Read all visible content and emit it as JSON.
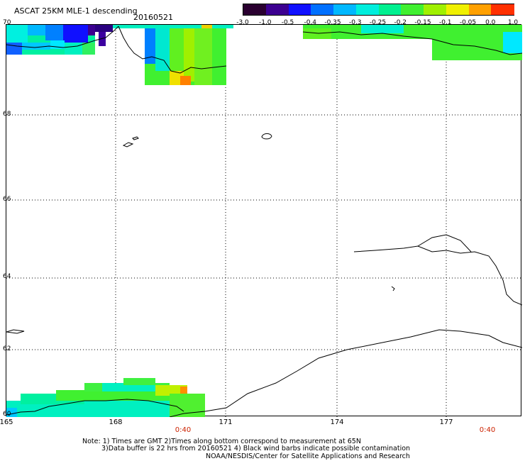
{
  "header": {
    "title": "ASCAT 25KM MLE-1 descending",
    "date": "20160521"
  },
  "colorbar": {
    "labels": [
      "-3.0",
      "-1.0",
      "-0.5",
      "-0.4",
      "-0.35",
      "-0.3",
      "-0.25",
      "-0.2",
      "-0.15",
      "-0.1",
      "-0.05",
      "0.0",
      "1.0"
    ],
    "colors": [
      "#2a0030",
      "#3c0090",
      "#1010ff",
      "#0070ff",
      "#00b8ff",
      "#00eedd",
      "#00f090",
      "#40f030",
      "#a0f000",
      "#f0f000",
      "#ffa000",
      "#ff3000"
    ]
  },
  "map": {
    "lat_labels": [
      "70",
      "68",
      "66",
      "64",
      "62",
      "60"
    ],
    "lon_labels": [
      "165",
      "168",
      "171",
      "174",
      "177"
    ],
    "time_labels": [
      "0:40",
      "0:40"
    ]
  },
  "notes": {
    "line1": "Note: 1) Times are GMT 2)Times along bottom correspond to measurement at 65N",
    "line2": "3)Data buffer is 22 hrs from 20160521 4) Black wind barbs indicate possible contamination",
    "line3": "NOAA/NESDIS/Center for Satellite Applications and Research"
  }
}
